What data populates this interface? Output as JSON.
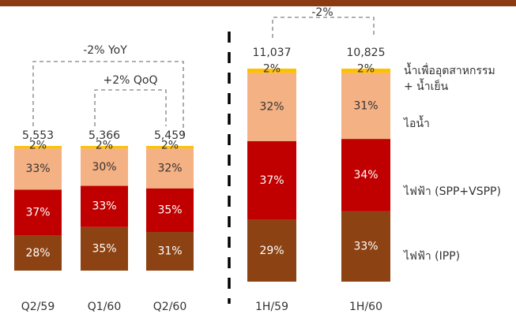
{
  "chart_data": [
    {
      "type": "bar",
      "stacked": true,
      "categories": [
        "Q2/59",
        "Q1/60",
        "Q2/60"
      ],
      "series": [
        {
          "color": "#8c4212",
          "values": [
            28,
            35,
            31
          ],
          "value_labels": [
            "28%",
            "35%",
            "31%"
          ]
        },
        {
          "color": "#c00000",
          "values": [
            37,
            33,
            35
          ],
          "value_labels": [
            "37%",
            "33%",
            "35%"
          ]
        },
        {
          "color": "#f4b183",
          "values": [
            33,
            30,
            32
          ],
          "value_labels": [
            "33%",
            "30%",
            "32%"
          ]
        },
        {
          "color": "#ffc000",
          "values": [
            2,
            2,
            2
          ],
          "value_labels": [
            "2%",
            "2%",
            "2%"
          ]
        }
      ],
      "totals": {
        "values": [
          5553,
          5366,
          5459
        ],
        "value_labels": [
          "5,553",
          "5,366",
          "5,459"
        ]
      },
      "annotations": [
        "-2% YoY",
        "+2% QoQ"
      ]
    },
    {
      "type": "bar",
      "stacked": true,
      "categories": [
        "1H/59",
        "1H/60"
      ],
      "series": [
        {
          "name": "ไฟฟ้า (IPP)",
          "color": "#8c4212",
          "values": [
            29,
            33
          ],
          "value_labels": [
            "29%",
            "33%"
          ]
        },
        {
          "name": "ไฟฟ้า (SPP+VSPP)",
          "color": "#c00000",
          "values": [
            37,
            34
          ],
          "value_labels": [
            "37%",
            "34%"
          ]
        },
        {
          "name": "ไอน้ำ",
          "color": "#f4b183",
          "values": [
            32,
            31
          ],
          "value_labels": [
            "32%",
            "31%"
          ]
        },
        {
          "name": "น้ำเพื่ออุตสาหกรรม\n+ น้ำเย็น",
          "color": "#ffc000",
          "values": [
            2,
            2
          ],
          "value_labels": [
            "2%",
            "2%"
          ]
        }
      ],
      "totals": {
        "values": [
          11037,
          10825
        ],
        "value_labels": [
          "11,037",
          "10,825"
        ]
      },
      "annotations": [
        "-2%"
      ]
    }
  ]
}
